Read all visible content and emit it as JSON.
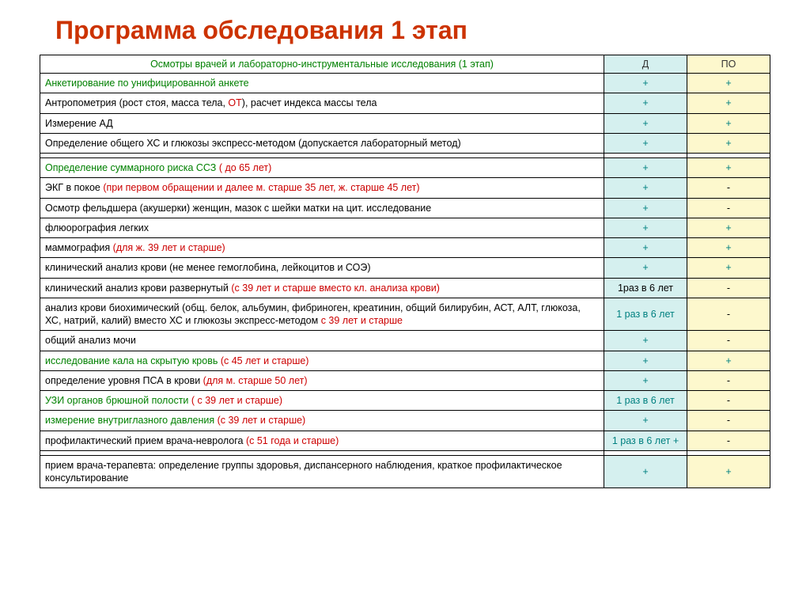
{
  "title": "Программа обследования 1 этап",
  "headers": {
    "main": "Осмотры врачей и лабораторно-инструментальные исследования (1 этап)",
    "d": "Д",
    "po": "ПО"
  },
  "colors": {
    "title": "#cc3300",
    "green": "#008000",
    "red": "#cc0000",
    "teal": "#008080",
    "black": "#000000",
    "d_bg": "#d5f0ef",
    "po_bg": "#fdf8cd",
    "border": "#000000"
  },
  "rows": [
    {
      "segments": [
        {
          "text": "Анкетирование по унифицированной анкете",
          "color": "green"
        }
      ],
      "d": {
        "text": "+",
        "color": "teal"
      },
      "po": {
        "text": "+",
        "color": "teal"
      }
    },
    {
      "segments": [
        {
          "text": "Антропометрия (рост стоя, масса тела, ",
          "color": "black"
        },
        {
          "text": "ОТ",
          "color": "red"
        },
        {
          "text": "), расчет индекса массы тела",
          "color": "black"
        }
      ],
      "d": {
        "text": "+",
        "color": "teal"
      },
      "po": {
        "text": "+",
        "color": "teal"
      }
    },
    {
      "segments": [
        {
          "text": "Измерение АД",
          "color": "black"
        }
      ],
      "d": {
        "text": "+",
        "color": "teal"
      },
      "po": {
        "text": "+",
        "color": "teal"
      }
    },
    {
      "segments": [
        {
          "text": "Определение общего ХС и глюкозы экспресс-методом (допускается лабораторный метод)",
          "color": "black"
        }
      ],
      "d": {
        "text": "+",
        "color": "teal"
      },
      "po": {
        "text": "+",
        "color": "teal"
      }
    },
    {
      "spacer": true
    },
    {
      "segments": [
        {
          "text": "Определение суммарного риска ССЗ ",
          "color": "green"
        },
        {
          "text": "( до 65 лет)",
          "color": "red"
        }
      ],
      "d": {
        "text": "+",
        "color": "teal"
      },
      "po": {
        "text": "+",
        "color": "teal"
      }
    },
    {
      "segments": [
        {
          "text": "ЭКГ в покое ",
          "color": "black"
        },
        {
          "text": "(при первом обращении и далее м. старше 35 лет, ж. старше 45 лет)",
          "color": "red"
        }
      ],
      "d": {
        "text": "+",
        "color": "teal"
      },
      "po": {
        "text": "-",
        "color": "black"
      }
    },
    {
      "segments": [
        {
          "text": "Осмотр фельдшера (акушерки) женщин,  мазок  с шейки матки на цит. исследование",
          "color": "black"
        }
      ],
      "d": {
        "text": "+",
        "color": "teal"
      },
      "po": {
        "text": "-",
        "color": "black"
      }
    },
    {
      "segments": [
        {
          "text": "флюорография легких",
          "color": "black"
        }
      ],
      "d": {
        "text": "+",
        "color": "teal"
      },
      "po": {
        "text": "+",
        "color": "teal"
      }
    },
    {
      "segments": [
        {
          "text": "маммография ",
          "color": "black"
        },
        {
          "text": "(для ж. 39 лет и старше)",
          "color": "red"
        }
      ],
      "d": {
        "text": "+",
        "color": "teal"
      },
      "po": {
        "text": "+",
        "color": "teal"
      }
    },
    {
      "segments": [
        {
          "text": " клинический анализ крови (не менее  гемоглобина, лейкоцитов и СОЭ)",
          "color": "black"
        }
      ],
      "d": {
        "text": "+",
        "color": "teal"
      },
      "po": {
        "text": "+",
        "color": "teal"
      }
    },
    {
      "segments": [
        {
          "text": "клинический анализ крови развернутый  ",
          "color": "black"
        },
        {
          "text": "(с  39 лет и старше вместо кл. анализа крови)",
          "color": "red"
        }
      ],
      "d": {
        "text": "1раз в 6 лет",
        "color": "black"
      },
      "po": {
        "text": "-",
        "color": "black"
      }
    },
    {
      "segments": [
        {
          "text": "анализ крови биохимический (общ. белок, альбумин, фибриноген, креатинин, общий билирубин, АСТ, АЛТ, глюкоза, ХС, натрий, калий) вместо ХС и глюкозы экспресс-методом ",
          "color": "black"
        },
        {
          "text": "с 39 лет и старше",
          "color": "red"
        }
      ],
      "d": {
        "text": "1 раз в 6 лет",
        "color": "teal"
      },
      "po": {
        "text": "-",
        "color": "black"
      }
    },
    {
      "segments": [
        {
          "text": "общий анализ мочи",
          "color": "black"
        }
      ],
      "d": {
        "text": "+",
        "color": "teal"
      },
      "po": {
        "text": "-",
        "color": "black"
      }
    },
    {
      "segments": [
        {
          "text": "исследование кала на скрытую кровь ",
          "color": "green"
        },
        {
          "text": "(с 45 лет и старше)",
          "color": "red"
        }
      ],
      "d": {
        "text": "+",
        "color": "teal"
      },
      "po": {
        "text": "+",
        "color": "teal"
      }
    },
    {
      "segments": [
        {
          "text": "определение уровня ПСА в крови ",
          "color": "black"
        },
        {
          "text": "(для м. старше 50 лет)",
          "color": "red"
        }
      ],
      "d": {
        "text": "+",
        "color": "teal"
      },
      "po": {
        "text": "-",
        "color": "black"
      }
    },
    {
      "segments": [
        {
          "text": "УЗИ органов брюшной полости ",
          "color": "green"
        },
        {
          "text": "( с 39 лет и старше)",
          "color": "red"
        }
      ],
      "d": {
        "text": "1 раз в 6 лет",
        "color": "teal"
      },
      "po": {
        "text": "-",
        "color": "black"
      }
    },
    {
      "segments": [
        {
          "text": "измерение внутриглазного давления ",
          "color": "green"
        },
        {
          "text": "(с 39 лет и старше)",
          "color": "red"
        }
      ],
      "d": {
        "text": "+",
        "color": "teal"
      },
      "po": {
        "text": "-",
        "color": "black"
      }
    },
    {
      "segments": [
        {
          "text": "профилактический прием врача-невролога ",
          "color": "black"
        },
        {
          "text": "(с  51 года и старше)",
          "color": "red"
        }
      ],
      "d": {
        "text": "1 раз в 6 лет +",
        "color": "teal"
      },
      "po": {
        "text": "-",
        "color": "black"
      }
    },
    {
      "spacer": true
    },
    {
      "segments": [
        {
          "text": "прием врача-терапевта:  определение группы здоровья,  диспансерного наблюдения,  краткое профилактическое консультирование",
          "color": "black"
        }
      ],
      "d": {
        "text": "+",
        "color": "teal"
      },
      "po": {
        "text": "+",
        "color": "teal"
      }
    }
  ]
}
